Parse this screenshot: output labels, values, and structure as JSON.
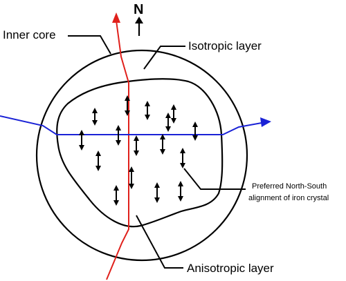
{
  "labels": {
    "north": "N",
    "inner_core": "Inner core",
    "isotropic_layer": "Isotropic layer",
    "preferred_line1": "Preferred North-South",
    "preferred_line2": "alignment of iron crystal",
    "anisotropic_layer": "Anisotropic layer"
  },
  "colors": {
    "outline": "#000000",
    "polar_path": "#e0201b",
    "equatorial_path": "#1a22d6"
  },
  "icons": {
    "north_arrow": "arrow-up-icon",
    "crystal_alignment": "double-headed-vertical-arrow-icon"
  },
  "crystal_arrow_count": 17
}
